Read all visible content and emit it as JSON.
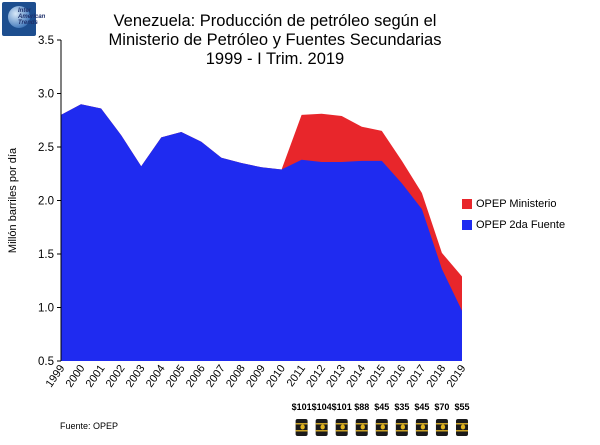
{
  "logo": {
    "text_line1": "Inter",
    "text_line2": "American",
    "text_line3": "Trends"
  },
  "chart_data": {
    "type": "area",
    "title": [
      "Venezuela: Producción de petróleo según el",
      "Ministerio de Petróleo y Fuentes Secundarias",
      "1999 - I Trim. 2019"
    ],
    "ylabel": "Millón barriles por día",
    "xlabel": "",
    "ylim": [
      0.5,
      3.5
    ],
    "yticks": [
      "0.5",
      "1.0",
      "1.5",
      "2.0",
      "2.5",
      "3.0",
      "3.5"
    ],
    "categories": [
      "1999",
      "2000",
      "2001",
      "2002",
      "2003",
      "2004",
      "2005",
      "2006",
      "2007",
      "2008",
      "2009",
      "2010",
      "2011",
      "2012",
      "2013",
      "2014",
      "2015",
      "2016",
      "2017",
      "2018",
      "2019"
    ],
    "series": [
      {
        "name": "OPEP Ministerio",
        "color": "#e8262b",
        "values": [
          2.8,
          2.9,
          2.86,
          2.61,
          2.32,
          2.59,
          2.64,
          2.55,
          2.4,
          2.35,
          2.31,
          2.29,
          2.8,
          2.81,
          2.79,
          2.69,
          2.65,
          2.37,
          2.07,
          1.51,
          1.29
        ]
      },
      {
        "name": "OPEP 2da Fuente",
        "color": "#1f2bf0",
        "values": [
          2.8,
          2.9,
          2.86,
          2.61,
          2.32,
          2.59,
          2.64,
          2.55,
          2.4,
          2.35,
          2.31,
          2.29,
          2.38,
          2.36,
          2.36,
          2.37,
          2.37,
          2.16,
          1.92,
          1.36,
          0.97
        ]
      }
    ],
    "legend_position": "right",
    "grid": false,
    "price_labels": [
      {
        "year": "2011",
        "label": "$101"
      },
      {
        "year": "2012",
        "label": "$104"
      },
      {
        "year": "2013",
        "label": "$101"
      },
      {
        "year": "2014",
        "label": "$88"
      },
      {
        "year": "2015",
        "label": "$45"
      },
      {
        "year": "2016",
        "label": "$35"
      },
      {
        "year": "2017",
        "label": "$45"
      },
      {
        "year": "2018",
        "label": "$70"
      },
      {
        "year": "2019",
        "label": "$55"
      }
    ],
    "barrel_icon": "oil-barrel-icon"
  },
  "source": "Fuente: OPEP"
}
